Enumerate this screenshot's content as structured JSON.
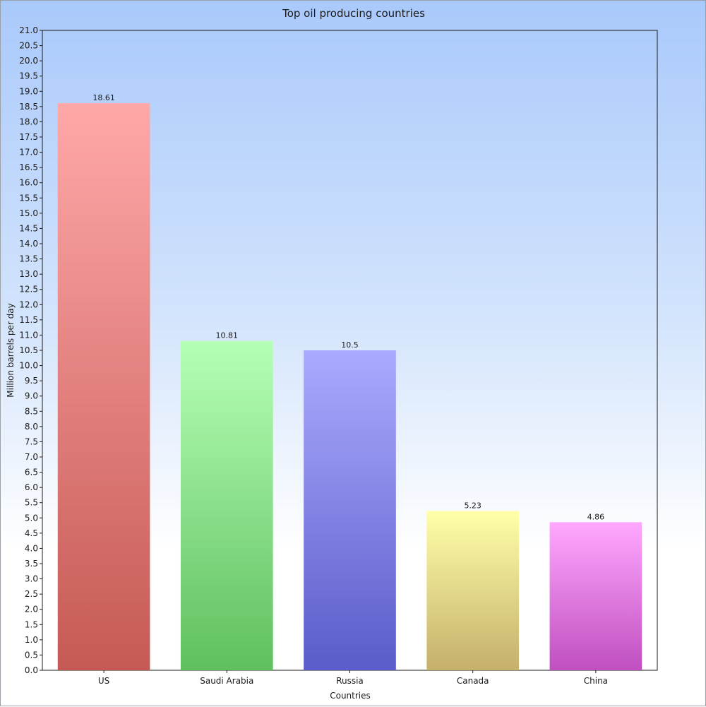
{
  "chart_data": {
    "type": "bar",
    "title": "Top oil producing countries",
    "xlabel": "Countries",
    "ylabel": "Million barrels per day",
    "categories": [
      "US",
      "Saudi Arabia",
      "Russia",
      "Canada",
      "China"
    ],
    "values": [
      18.61,
      10.81,
      10.5,
      5.23,
      4.86
    ],
    "value_labels": [
      "18.61",
      "10.81",
      "10.5",
      "5.23",
      "4.86"
    ],
    "ylim": [
      0,
      21
    ],
    "ytick_step": 0.5,
    "grid": false,
    "legend": "none",
    "colors": [
      {
        "top": "#ffa8a8",
        "bottom": "#c55a55"
      },
      {
        "top": "#b6ffb6",
        "bottom": "#5fc05f"
      },
      {
        "top": "#aaaaff",
        "bottom": "#5b5bc9"
      },
      {
        "top": "#ffffaa",
        "bottom": "#c5b06a"
      },
      {
        "top": "#ffa8ff",
        "bottom": "#c04fc0"
      }
    ]
  }
}
